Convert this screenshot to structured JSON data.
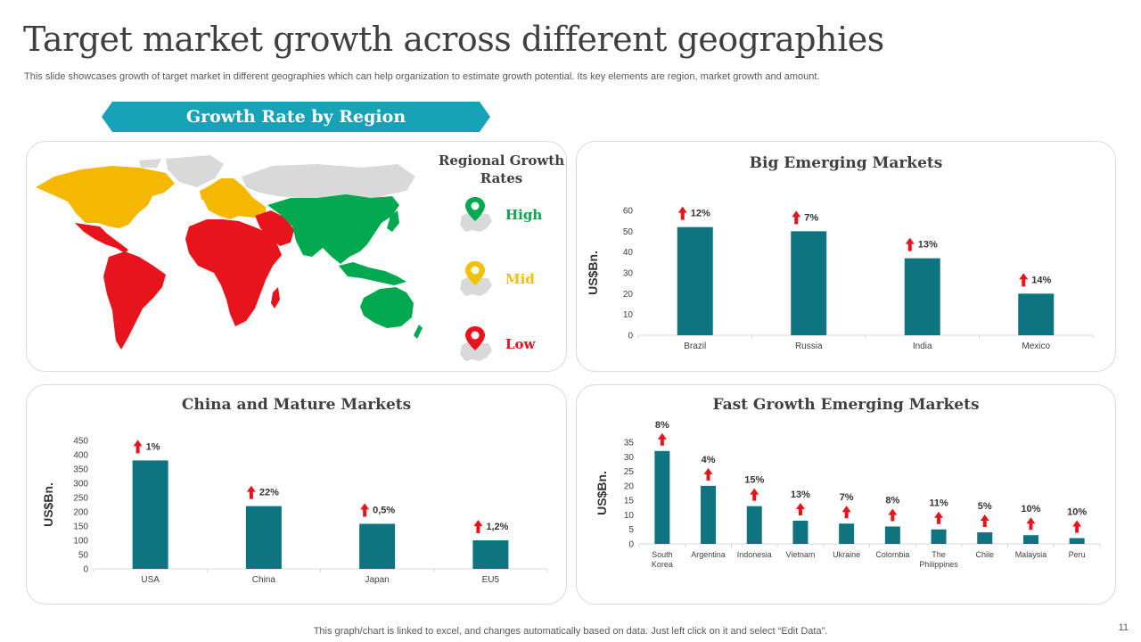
{
  "header": {
    "title": "Target market growth across different geographies",
    "subtitle": "This slide showcases growth of target market in different geographies which can help organization to estimate growth potential. Its key elements are region, market growth and amount."
  },
  "banner": {
    "label": "Growth Rate by Region"
  },
  "map_legend": {
    "title": "Regional Growth Rates",
    "items": [
      {
        "label": "High",
        "color": "#00a94f"
      },
      {
        "label": "Mid",
        "color": "#f2c200"
      },
      {
        "label": "Low",
        "color": "#e8141b"
      }
    ]
  },
  "colors": {
    "bar": "#0e7580",
    "arrow": "#e8141b",
    "map_grey": "#d9d9d9"
  },
  "chart_data": [
    {
      "id": "big_emerging",
      "type": "bar",
      "title": "Big Emerging Markets",
      "ylabel": "US$Bn.",
      "categories": [
        "Brazil",
        "Russia",
        "India",
        "Mexico"
      ],
      "values": [
        52,
        50,
        37,
        20
      ],
      "growth_labels": [
        "12%",
        "7%",
        "13%",
        "14%"
      ],
      "ylim": [
        0,
        60
      ],
      "yticks": [
        0,
        10,
        20,
        30,
        40,
        50,
        60
      ]
    },
    {
      "id": "china_mature",
      "type": "bar",
      "title": "China and Mature Markets",
      "ylabel": "US$Bn.",
      "categories": [
        "USA",
        "China",
        "Japan",
        "EU5"
      ],
      "values": [
        380,
        220,
        158,
        100
      ],
      "growth_labels": [
        "1%",
        "22%",
        "0,5%",
        "1,2%"
      ],
      "ylim": [
        0,
        450
      ],
      "yticks": [
        0,
        50,
        100,
        150,
        200,
        250,
        300,
        350,
        400,
        450
      ]
    },
    {
      "id": "fast_growth",
      "type": "bar",
      "title": "Fast Growth Emerging Markets",
      "ylabel": "US$Bn.",
      "categories": [
        "South Korea",
        "Argentina",
        "Indonesia",
        "Vietnam",
        "Ukraine",
        "Colombia",
        "The Philippines",
        "Chile",
        "Malaysia",
        "Peru"
      ],
      "values": [
        32,
        20,
        13,
        8,
        7,
        6,
        5,
        4,
        3,
        2
      ],
      "growth_labels": [
        "8%",
        "4%",
        "15%",
        "13%",
        "7%",
        "8%",
        "11%",
        "5%",
        "10%",
        "10%"
      ],
      "ylim": [
        0,
        35
      ],
      "yticks": [
        0,
        5,
        10,
        15,
        20,
        25,
        30,
        35
      ]
    }
  ],
  "footer": {
    "note": "This graph/chart is linked to excel,  and changes automatically based on data. Just left click on it and select “Edit Data”.",
    "page_number": "11"
  }
}
